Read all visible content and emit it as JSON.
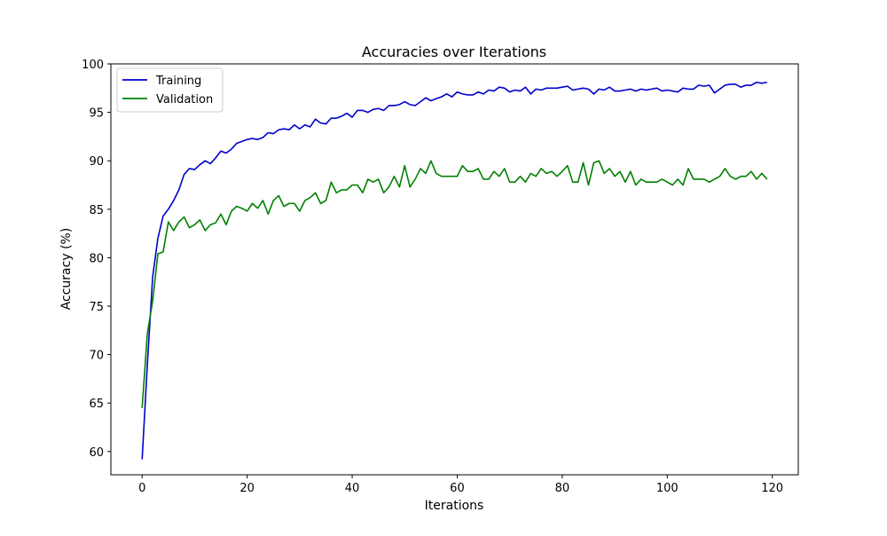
{
  "chart_data": {
    "type": "line",
    "title": "Accuracies over Iterations",
    "xlabel": "Iterations",
    "ylabel": "Accuracy (%)",
    "xlim": [
      -5.95,
      124.95
    ],
    "ylim": [
      57.6,
      100
    ],
    "x_ticks": [
      0,
      20,
      40,
      60,
      80,
      100,
      120
    ],
    "y_ticks": [
      60,
      65,
      70,
      75,
      80,
      85,
      90,
      95,
      100
    ],
    "grid": false,
    "legend_position": "top-left",
    "x": [
      0,
      1,
      2,
      3,
      4,
      5,
      6,
      7,
      8,
      9,
      10,
      11,
      12,
      13,
      14,
      15,
      16,
      17,
      18,
      19,
      20,
      21,
      22,
      23,
      24,
      25,
      26,
      27,
      28,
      29,
      30,
      31,
      32,
      33,
      34,
      35,
      36,
      37,
      38,
      39,
      40,
      41,
      42,
      43,
      44,
      45,
      46,
      47,
      48,
      49,
      50,
      51,
      52,
      53,
      54,
      55,
      56,
      57,
      58,
      59,
      60,
      61,
      62,
      63,
      64,
      65,
      66,
      67,
      68,
      69,
      70,
      71,
      72,
      73,
      74,
      75,
      76,
      77,
      78,
      79,
      80,
      81,
      82,
      83,
      84,
      85,
      86,
      87,
      88,
      89,
      90,
      91,
      92,
      93,
      94,
      95,
      96,
      97,
      98,
      99,
      100,
      101,
      102,
      103,
      104,
      105,
      106,
      107,
      108,
      109,
      110,
      111,
      112,
      113,
      114,
      115,
      116,
      117,
      118,
      119
    ],
    "series": [
      {
        "name": "Training",
        "color": "#0000cc",
        "values": [
          59.2,
          69.0,
          78.0,
          82.0,
          84.3,
          85.0,
          85.9,
          87.0,
          88.6,
          89.2,
          89.1,
          89.6,
          90.0,
          89.7,
          90.3,
          91.0,
          90.8,
          91.2,
          91.8,
          92.0,
          92.2,
          92.3,
          92.2,
          92.4,
          92.9,
          92.8,
          93.2,
          93.3,
          93.2,
          93.7,
          93.3,
          93.7,
          93.5,
          94.3,
          93.9,
          93.8,
          94.4,
          94.4,
          94.6,
          94.9,
          94.5,
          95.2,
          95.2,
          95.0,
          95.3,
          95.4,
          95.2,
          95.7,
          95.7,
          95.8,
          96.1,
          95.8,
          95.7,
          96.1,
          96.5,
          96.2,
          96.4,
          96.6,
          96.9,
          96.6,
          97.1,
          96.9,
          96.8,
          96.8,
          97.1,
          96.9,
          97.3,
          97.2,
          97.6,
          97.5,
          97.1,
          97.3,
          97.2,
          97.6,
          96.9,
          97.4,
          97.3,
          97.5,
          97.5,
          97.5,
          97.6,
          97.7,
          97.3,
          97.4,
          97.5,
          97.4,
          96.9,
          97.4,
          97.3,
          97.6,
          97.2,
          97.2,
          97.3,
          97.4,
          97.2,
          97.4,
          97.3,
          97.4,
          97.5,
          97.2,
          97.3,
          97.2,
          97.1,
          97.5,
          97.4,
          97.4,
          97.8,
          97.7,
          97.8,
          97.0,
          97.4,
          97.8,
          97.9,
          97.9,
          97.6,
          97.8,
          97.8,
          98.1,
          98.0,
          98.1
        ]
      },
      {
        "name": "Validation",
        "color": "#008000",
        "values": [
          64.5,
          72.2,
          75.5,
          80.4,
          80.6,
          83.7,
          82.8,
          83.7,
          84.2,
          83.1,
          83.4,
          83.9,
          82.8,
          83.4,
          83.6,
          84.5,
          83.4,
          84.8,
          85.3,
          85.1,
          84.8,
          85.6,
          85.1,
          85.9,
          84.5,
          85.9,
          86.4,
          85.3,
          85.6,
          85.6,
          84.8,
          85.9,
          86.2,
          86.7,
          85.6,
          85.9,
          87.8,
          86.7,
          87.0,
          87.0,
          87.5,
          87.5,
          86.7,
          88.1,
          87.8,
          88.1,
          86.7,
          87.3,
          88.4,
          87.3,
          89.5,
          87.3,
          88.1,
          89.2,
          88.7,
          90.0,
          88.7,
          88.4,
          88.4,
          88.4,
          88.4,
          89.5,
          88.9,
          88.9,
          89.2,
          88.1,
          88.1,
          88.9,
          88.4,
          89.2,
          87.8,
          87.8,
          88.4,
          87.8,
          88.7,
          88.4,
          89.2,
          88.7,
          88.9,
          88.4,
          88.9,
          89.5,
          87.8,
          87.8,
          89.8,
          87.5,
          89.8,
          90.0,
          88.7,
          89.2,
          88.4,
          88.9,
          87.8,
          88.9,
          87.5,
          88.1,
          87.8,
          87.8,
          87.8,
          88.1,
          87.8,
          87.5,
          88.1,
          87.5,
          89.2,
          88.1,
          88.1,
          88.1,
          87.8,
          88.1,
          88.4,
          89.2,
          88.4,
          88.1,
          88.4,
          88.4,
          88.9,
          88.1,
          88.7,
          88.1
        ]
      }
    ]
  }
}
